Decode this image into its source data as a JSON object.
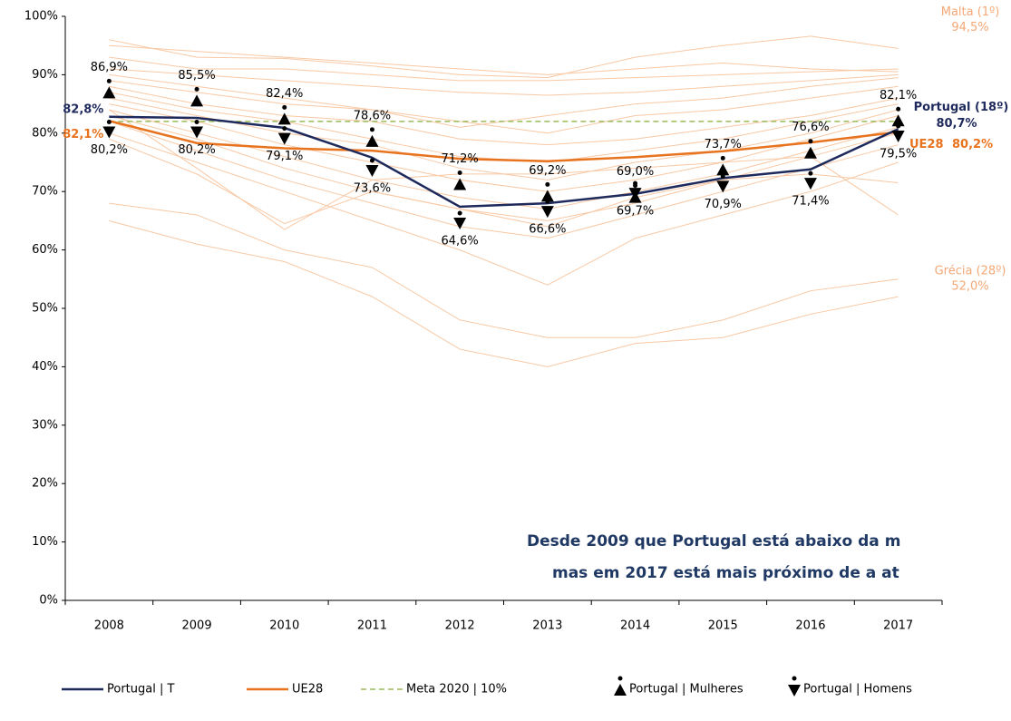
{
  "chart_data": {
    "type": "line",
    "categories": [
      "2008",
      "2009",
      "2010",
      "2011",
      "2012",
      "2013",
      "2014",
      "2015",
      "2016",
      "2017"
    ],
    "ylim": [
      0,
      100
    ],
    "yticks": [
      {
        "value": 0,
        "label": "0%"
      },
      {
        "value": 10,
        "label": "10%"
      },
      {
        "value": 20,
        "label": "20%"
      },
      {
        "value": 30,
        "label": "30%"
      },
      {
        "value": 40,
        "label": "40%"
      },
      {
        "value": 50,
        "label": "50%"
      },
      {
        "value": 60,
        "label": "60%"
      },
      {
        "value": 70,
        "label": "70%"
      },
      {
        "value": 80,
        "label": "80%"
      },
      {
        "value": 90,
        "label": "90%"
      },
      {
        "value": 100,
        "label": "100%"
      }
    ],
    "grid": false,
    "legend": "bottom",
    "series": [
      {
        "name": "Portugal | T",
        "color": "#1f2a5c",
        "style": "line",
        "end_note": "Portugal (18º)",
        "values": [
          82.8,
          82.6,
          80.9,
          75.8,
          67.4,
          68.0,
          69.6,
          72.3,
          73.8,
          80.7
        ],
        "value_labels": [
          "82,8%",
          null,
          null,
          null,
          null,
          null,
          null,
          null,
          null,
          "80,7%"
        ]
      },
      {
        "name": "UE28",
        "color": "#e8731f",
        "style": "line",
        "values": [
          82.1,
          78.3,
          77.4,
          77.0,
          75.6,
          75.2,
          75.9,
          76.9,
          78.4,
          80.2
        ],
        "value_labels": [
          "82,1%",
          null,
          null,
          null,
          null,
          null,
          null,
          null,
          null,
          "80,2%"
        ]
      },
      {
        "name": "Meta 2020 | 10%",
        "color": "#9bbb59",
        "style": "dash",
        "values": [
          82,
          82,
          82,
          82,
          82,
          82,
          82,
          82,
          82,
          82
        ]
      },
      {
        "name": "Portugal | Mulheres",
        "color": "#000000",
        "style": "up",
        "values": [
          86.9,
          85.5,
          82.4,
          78.6,
          71.2,
          69.2,
          69.0,
          73.7,
          76.6,
          82.1
        ],
        "value_labels": [
          "86,9%",
          "85,5%",
          "82,4%",
          "78,6%",
          "71,2%",
          "69,2%",
          "69,0%",
          "73,7%",
          "76,6%",
          "82,1%"
        ]
      },
      {
        "name": "Portugal | Homens",
        "color": "#000000",
        "style": "down",
        "values": [
          80.2,
          80.2,
          79.1,
          73.6,
          64.6,
          66.6,
          69.7,
          70.9,
          71.4,
          79.5
        ],
        "value_labels": [
          "80,2%",
          "80,2%",
          "79,1%",
          "73,6%",
          "64,6%",
          "66,6%",
          "69,7%",
          "70,9%",
          "71,4%",
          "79,5%"
        ]
      }
    ],
    "background_color": "#f8c8a4",
    "background_series": [
      {
        "name": "Malta (1º)",
        "values": [
          96,
          93,
          92.8,
          91.5,
          90,
          89.5,
          93,
          95,
          96.6,
          94.5
        ],
        "value_labels": [
          null,
          null,
          null,
          null,
          null,
          null,
          null,
          null,
          null,
          "94,5%"
        ]
      },
      {
        "values": [
          95,
          94,
          93,
          92,
          91,
          90,
          91,
          92,
          91,
          90.5
        ]
      },
      {
        "values": [
          93,
          91,
          91,
          90,
          89,
          89,
          89.5,
          90,
          90.5,
          91
        ]
      },
      {
        "values": [
          91,
          90,
          89,
          88,
          87,
          86.5,
          87,
          88,
          89,
          90
        ]
      },
      {
        "values": [
          90,
          88,
          86,
          84,
          81,
          83,
          85,
          86,
          88,
          89.5
        ]
      },
      {
        "values": [
          89,
          87,
          85,
          84,
          82,
          80,
          83,
          84,
          86,
          88
        ]
      },
      {
        "values": [
          88,
          85,
          83,
          82,
          79,
          78,
          79,
          81,
          83,
          86
        ]
      },
      {
        "values": [
          87,
          84,
          82,
          79,
          76,
          75,
          77,
          79,
          82,
          85
        ]
      },
      {
        "values": [
          86,
          83,
          80,
          78,
          74,
          72,
          75,
          77,
          80,
          84
        ]
      },
      {
        "values": [
          85,
          82,
          78,
          75,
          72,
          70,
          72,
          75,
          79,
          83
        ]
      },
      {
        "values": [
          84,
          80,
          76,
          72,
          69,
          67,
          70,
          73,
          77,
          81
        ]
      },
      {
        "values": [
          83,
          79,
          74,
          70,
          67,
          65,
          68,
          72,
          76,
          80
        ]
      },
      {
        "values": [
          82,
          77,
          72,
          68,
          64,
          62,
          66,
          70,
          74,
          78
        ]
      },
      {
        "values": [
          80,
          75,
          70,
          65,
          60,
          54,
          62,
          66,
          70,
          75
        ]
      },
      {
        "values": [
          79,
          73,
          64.5,
          70,
          67,
          64,
          69,
          72,
          73,
          71.5
        ]
      },
      {
        "values": [
          84,
          74,
          63.5,
          72,
          73,
          73,
          74,
          75,
          76,
          66
        ]
      },
      {
        "values": [
          68,
          66,
          60,
          57,
          48,
          45,
          45,
          48,
          53,
          55
        ]
      },
      {
        "name": "Grécia (28º)",
        "values": [
          65,
          61,
          58,
          52,
          43,
          40,
          44,
          45,
          49,
          52
        ],
        "value_labels": [
          null,
          null,
          null,
          null,
          null,
          null,
          null,
          null,
          null,
          "52,0%"
        ]
      }
    ],
    "annotations": [
      "Desde 2009 que Portugal está abaixo da m",
      "mas em 2017 está mais próximo de a at"
    ]
  }
}
